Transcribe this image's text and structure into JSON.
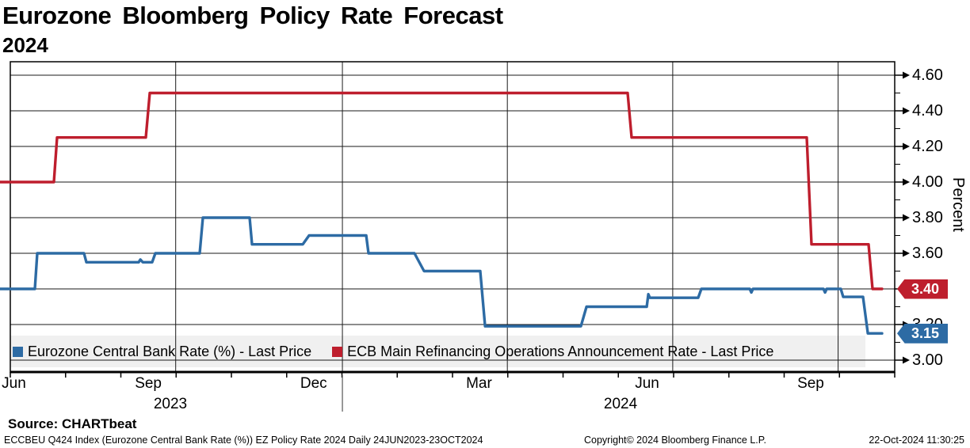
{
  "header": {
    "title": "Eurozone Bloomberg Policy Rate Forecast",
    "subtitle": "2024"
  },
  "chart_data": {
    "type": "line",
    "style": "step",
    "title": "Eurozone Bloomberg Policy Rate Forecast 2024",
    "ylabel": "Percent",
    "ylim": [
      3.0,
      4.6
    ],
    "x_range": "24JUN2023-23OCT2024",
    "grid": true,
    "legend_position": "bottom",
    "y_ticks": [
      4.6,
      4.4,
      4.2,
      4.0,
      3.8,
      3.6,
      3.4,
      3.2,
      3.0
    ],
    "y_minor_ticks": [
      4.5,
      4.3,
      4.1,
      3.9,
      3.7,
      3.5,
      3.3,
      3.1
    ],
    "x_axis": {
      "month_labels": [
        {
          "label": "Jun",
          "f": 0.004
        },
        {
          "label": "Sep",
          "f": 0.156
        },
        {
          "label": "Dec",
          "f": 0.343
        },
        {
          "label": "Mar",
          "f": 0.53
        },
        {
          "label": "Jun",
          "f": 0.72
        },
        {
          "label": "Sep",
          "f": 0.905
        }
      ],
      "year_labels": [
        {
          "label": "2023",
          "f": 0.181
        },
        {
          "label": "2024",
          "f": 0.69
        }
      ],
      "grid_f": [
        0.187,
        0.3755,
        0.562,
        0.749,
        0.936
      ],
      "year_divider_f": 0.3755,
      "minor_tick_count": 17
    },
    "series": [
      {
        "name": "Eurozone Central Bank Rate (%) - Last Price",
        "color": "#2d6ba4",
        "last_value": "3.15",
        "last_value_num": 3.15,
        "points": [
          [
            -0.012,
            3.4
          ],
          [
            0.0278,
            3.4
          ],
          [
            0.0305,
            3.6
          ],
          [
            0.0833,
            3.6
          ],
          [
            0.086,
            3.55
          ],
          [
            0.1452,
            3.55
          ],
          [
            0.147,
            3.565
          ],
          [
            0.1497,
            3.55
          ],
          [
            0.1604,
            3.55
          ],
          [
            0.164,
            3.6
          ],
          [
            0.2142,
            3.6
          ],
          [
            0.2177,
            3.8
          ],
          [
            0.2706,
            3.8
          ],
          [
            0.2733,
            3.65
          ],
          [
            0.3307,
            3.65
          ],
          [
            0.3378,
            3.7
          ],
          [
            0.4024,
            3.7
          ],
          [
            0.405,
            3.6
          ],
          [
            0.457,
            3.6
          ],
          [
            0.4678,
            3.5
          ],
          [
            0.5314,
            3.5
          ],
          [
            0.5368,
            3.19
          ],
          [
            0.6452,
            3.19
          ],
          [
            0.6515,
            3.3
          ],
          [
            0.7196,
            3.3
          ],
          [
            0.7214,
            3.37
          ],
          [
            0.7231,
            3.35
          ],
          [
            0.7778,
            3.35
          ],
          [
            0.7814,
            3.4
          ],
          [
            0.8361,
            3.4
          ],
          [
            0.8379,
            3.38
          ],
          [
            0.8397,
            3.4
          ],
          [
            0.9194,
            3.4
          ],
          [
            0.9212,
            3.38
          ],
          [
            0.923,
            3.4
          ],
          [
            0.9391,
            3.4
          ],
          [
            0.9418,
            3.355
          ],
          [
            0.9642,
            3.355
          ],
          [
            0.9696,
            3.15
          ],
          [
            0.9857,
            3.15
          ]
        ]
      },
      {
        "name": "ECB Main Refinancing Operations Announcement Rate - Last Price",
        "color": "#be1e2d",
        "last_value": "3.40",
        "last_value_num": 3.4,
        "points": [
          [
            -0.012,
            4.0
          ],
          [
            0.0493,
            4.0
          ],
          [
            0.0529,
            4.25
          ],
          [
            0.1532,
            4.25
          ],
          [
            0.1577,
            4.5
          ],
          [
            0.698,
            4.5
          ],
          [
            0.7025,
            4.25
          ],
          [
            0.9005,
            4.25
          ],
          [
            0.9059,
            3.65
          ],
          [
            0.9704,
            3.65
          ],
          [
            0.9749,
            3.4
          ],
          [
            0.9857,
            3.4
          ]
        ]
      }
    ],
    "colors": {
      "grid": "#1a1a1a",
      "axis": "#000000",
      "legend_band": "#f0f0f0"
    }
  },
  "footer": {
    "source": "Source: CHARTbeat",
    "description": "ECCBEU Q424 Index (Eurozone Central Bank Rate (%)) EZ Policy Rate 2024  Daily 24JUN2023-23OCT2024",
    "copyright": "Copyright© 2024 Bloomberg Finance L.P.",
    "timestamp": "22-Oct-2024 11:30:25"
  }
}
